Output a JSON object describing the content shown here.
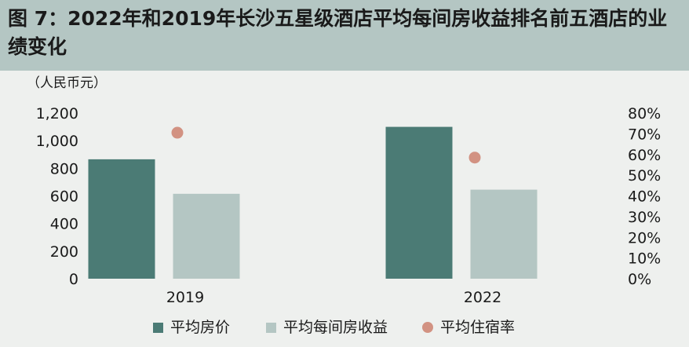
{
  "title": "图 7：2022年和2019年长沙五星级酒店平均每间房收益排名前五酒店的业绩变化",
  "unit_label": "（人民币元）",
  "colors": {
    "header_bg": "#b4c6c3",
    "adr": "#4b7b75",
    "revpar": "#b4c6c3",
    "occupancy": "#d29282"
  },
  "legend": [
    {
      "label": "平均房价",
      "marker": "square",
      "color": "#4b7b75"
    },
    {
      "label": "平均每间房收益",
      "marker": "square",
      "color": "#b4c6c3"
    },
    {
      "label": "平均住宿率",
      "marker": "dot",
      "color": "#d29282"
    }
  ],
  "chart_data": {
    "type": "bar",
    "categories": [
      "2019",
      "2022"
    ],
    "series": [
      {
        "name": "平均房价",
        "type": "bar",
        "axis": "left",
        "values": [
          865,
          1100
        ]
      },
      {
        "name": "平均每间房收益",
        "type": "bar",
        "axis": "left",
        "values": [
          615,
          645
        ]
      },
      {
        "name": "平均住宿率",
        "type": "scatter",
        "axis": "right",
        "values": [
          0.705,
          0.585
        ]
      }
    ],
    "left_axis": {
      "ylim": [
        0,
        1200
      ],
      "ticks": [
        "0",
        "200",
        "400",
        "600",
        "800",
        "1,000",
        "1,200"
      ]
    },
    "right_axis": {
      "ylim": [
        0,
        0.8
      ],
      "ticks": [
        "0%",
        "10%",
        "20%",
        "30%",
        "40%",
        "50%",
        "60%",
        "70%",
        "80%"
      ]
    },
    "grid": false,
    "legend_position": "bottom"
  }
}
